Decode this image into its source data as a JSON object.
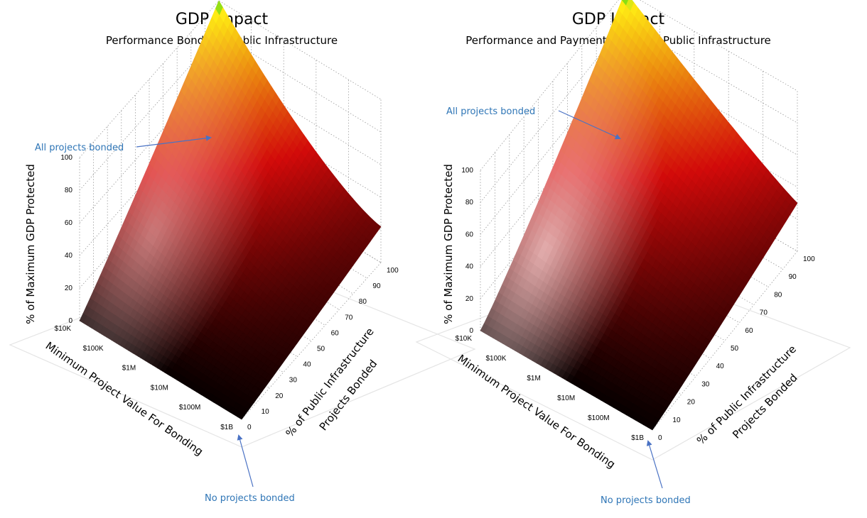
{
  "chart_data": [
    {
      "type": "surface",
      "title": "GDP Impact",
      "subtitle": "Performance Bonds on Public Infrastructure",
      "xlabel": "Minimum Project Value For Bonding",
      "ylabel_lines": [
        "% of Public Infrastructure",
        "Projects Bonded"
      ],
      "zlabel": "% of Maximum GDP Protected",
      "x_categories": [
        "$10K",
        "$100K",
        "$1M",
        "$10M",
        "$100M",
        "$1B"
      ],
      "y_ticks": [
        0,
        10,
        20,
        30,
        40,
        50,
        60,
        70,
        80,
        90,
        100
      ],
      "z_ticks": [
        0,
        20,
        40,
        60,
        80,
        100
      ],
      "zlim": [
        0,
        100
      ],
      "grid": true,
      "colormap": [
        "#000000",
        "#cc0000",
        "#ffff00",
        "#00cc00"
      ],
      "annotations": [
        {
          "label": "All projects bonded",
          "points_to": "x=$10K, y=100, z=100"
        },
        {
          "label": "No projects bonded",
          "points_to": "x=$1B, y=0, z=0"
        }
      ]
    },
    {
      "type": "surface",
      "title": "GDP Impact",
      "subtitle": "Performance and Payment Bonds on Public Infrastructure",
      "xlabel": "Minimum Project Value For Bonding",
      "ylabel_lines": [
        "% of Public Infrastructure",
        "Projects Bonded"
      ],
      "zlabel": "% of Maximum GDP Protected",
      "x_categories": [
        "$10K",
        "$100K",
        "$1M",
        "$10M",
        "$100M",
        "$1B"
      ],
      "y_ticks": [
        0,
        10,
        20,
        30,
        40,
        50,
        60,
        70,
        80,
        90,
        100
      ],
      "z_ticks": [
        0,
        20,
        40,
        60,
        80,
        100
      ],
      "zlim": [
        0,
        100
      ],
      "grid": true,
      "colormap": [
        "#000000",
        "#cc0000",
        "#ffff00",
        "#00cc00"
      ],
      "annotations": [
        {
          "label": "All projects bonded",
          "points_to": "x=$10K, y=100, z=100"
        },
        {
          "label": "No projects bonded",
          "points_to": "x=$1B, y=0, z=0"
        }
      ]
    }
  ]
}
